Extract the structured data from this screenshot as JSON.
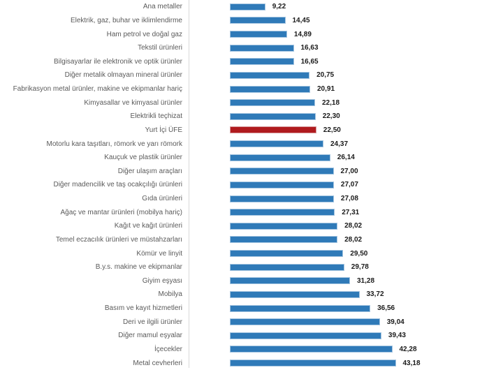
{
  "chart_data": {
    "type": "bar",
    "orientation": "horizontal",
    "title": "",
    "xlabel": "",
    "ylabel": "",
    "xlim": [
      0,
      45
    ],
    "grid": false,
    "legend": false,
    "value_label_position": "end-of-bar",
    "value_decimal_style": "comma",
    "highlight_category": "Yurt İçi ÜFE",
    "categories": [
      "Ana metaller",
      "Elektrik, gaz, buhar ve iklimlendirme",
      "Ham petrol ve doğal gaz",
      "Tekstil ürünleri",
      "Bilgisayarlar ile elektronik ve optik ürünler",
      "Diğer metalik olmayan mineral ürünler",
      "Fabrikasyon metal ürünler, makine ve ekipmanlar hariç",
      "Kimyasallar ve kimyasal ürünler",
      "Elektrikli teçhizat",
      "Yurt İçi ÜFE",
      "Motorlu kara taşıtları, römork ve yarı römork",
      "Kauçuk ve plastik ürünler",
      "Diğer ulaşım araçları",
      "Diğer madencilik ve taş ocakçılığı ürünleri",
      "Gıda ürünleri",
      "Ağaç ve mantar ürünleri (mobilya hariç)",
      "Kağıt ve kağıt ürünleri",
      "Temel eczacılık ürünleri ve müstahzarları",
      "Kömür ve linyit",
      "B.y.s. makine ve ekipmanlar",
      "Giyim eşyası",
      "Mobilya",
      "Basım ve kayıt hizmetleri",
      "Deri ve ilgili ürünler",
      "Diğer mamul eşyalar",
      "İçecekler",
      "Metal cevherleri"
    ],
    "values": [
      9.22,
      14.45,
      14.89,
      16.63,
      16.65,
      20.75,
      20.91,
      22.18,
      22.3,
      22.5,
      24.37,
      26.14,
      27.0,
      27.07,
      27.08,
      27.31,
      28.02,
      28.02,
      29.5,
      29.78,
      31.28,
      33.72,
      36.56,
      39.04,
      39.43,
      42.28,
      43.18
    ],
    "values_display": [
      "9,22",
      "14,45",
      "14,89",
      "16,63",
      "16,65",
      "20,75",
      "20,91",
      "22,18",
      "22,30",
      "22,50",
      "24,37",
      "26,14",
      "27,00",
      "27,07",
      "27,08",
      "27,31",
      "28,02",
      "28,02",
      "29,50",
      "29,78",
      "31,28",
      "33,72",
      "36,56",
      "39,04",
      "39,43",
      "42,28",
      "43,18"
    ]
  },
  "colors": {
    "bar": "#2F7AB8",
    "bar_edge": "#A3C4E0",
    "highlight_bar": "#B01B1E",
    "highlight_bar_edge": "#D69A9C",
    "category_label": "#5A5A5A",
    "value_label": "#1A1A1A",
    "axis_line": "#D9D9D9",
    "background": "#FFFFFF"
  }
}
